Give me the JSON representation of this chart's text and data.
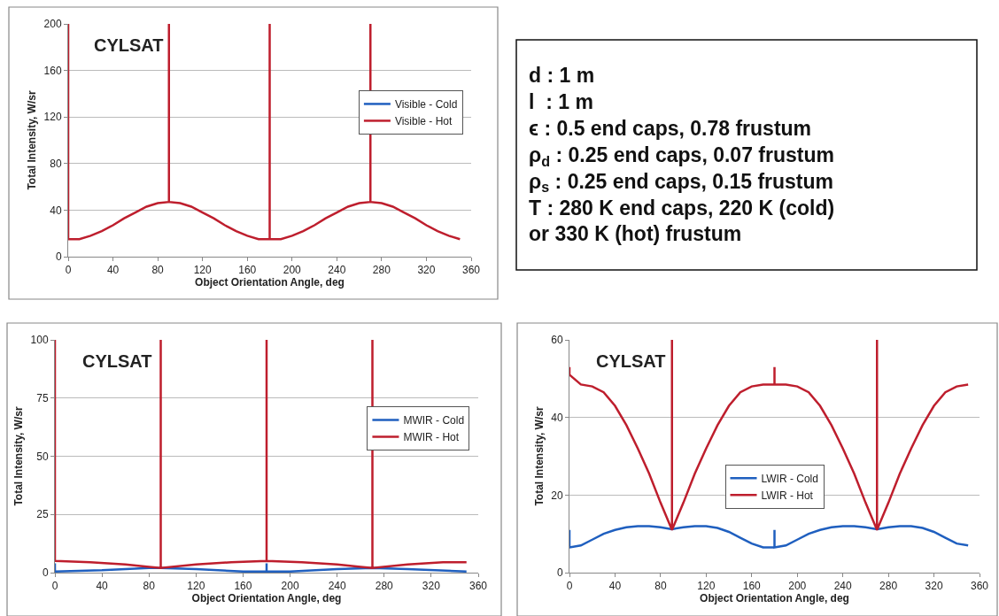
{
  "chart_data": [
    {
      "type": "line",
      "title": "CYLSAT",
      "xlabel": "Object Orientation Angle, deg",
      "ylabel": "Total Intensity, W/sr",
      "xlim": [
        0,
        360
      ],
      "xticks": [
        0,
        40,
        80,
        120,
        160,
        200,
        240,
        280,
        320,
        360
      ],
      "ylim": [
        0,
        200
      ],
      "yticks": [
        0,
        40,
        80,
        120,
        160,
        200
      ],
      "grid": "y",
      "legend": "right",
      "series": [
        {
          "name": "Visible - Cold",
          "color": "#1f5fbf",
          "values": [
            null
          ]
        },
        {
          "name": "Visible - Hot",
          "color": "#be1e2d",
          "x": [
            0,
            0,
            10,
            20,
            30,
            40,
            50,
            60,
            70,
            80,
            90,
            90,
            90,
            100,
            110,
            120,
            130,
            140,
            150,
            160,
            170,
            180,
            180,
            180,
            190,
            200,
            210,
            220,
            230,
            240,
            250,
            260,
            270,
            270,
            270,
            280,
            290,
            300,
            310,
            320,
            330,
            340,
            350
          ],
          "values": [
            200,
            15,
            15,
            18,
            22,
            27,
            33,
            38,
            43,
            46,
            47,
            200,
            47,
            46,
            43,
            38,
            33,
            27,
            22,
            18,
            15,
            15,
            200,
            15,
            15,
            18,
            22,
            27,
            33,
            38,
            43,
            46,
            47,
            200,
            47,
            46,
            43,
            38,
            33,
            27,
            22,
            18,
            15
          ]
        }
      ]
    },
    {
      "type": "other",
      "annotations": [
        "d : 1 m",
        "l  : 1 m",
        "ϵ : 0.5 end caps, 0.78 frustum",
        "ρ$_{d}$ : 0.25 end caps, 0.07 frustum",
        "ρ$_{s}$ : 0.25 end caps, 0.15 frustum",
        "T : 280 K end caps, 220 K (cold)",
        "or 330 K (hot) frustum"
      ]
    },
    {
      "type": "line",
      "title": "CYLSAT",
      "xlabel": "Object Orientation Angle, deg",
      "ylabel": "Total Intensity, W/sr",
      "xlim": [
        0,
        360
      ],
      "xticks": [
        0,
        40,
        80,
        120,
        160,
        200,
        240,
        280,
        320,
        360
      ],
      "ylim": [
        0,
        100
      ],
      "yticks": [
        0,
        25,
        50,
        75,
        100
      ],
      "grid": "y",
      "legend": "right",
      "series": [
        {
          "name": "MWIR - Cold",
          "color": "#1f5fbf",
          "x": [
            0,
            0,
            40,
            80,
            90,
            120,
            160,
            180,
            180,
            180,
            200,
            240,
            270,
            300,
            350
          ],
          "values": [
            4,
            0.5,
            1,
            2,
            2,
            1.5,
            0.5,
            0.5,
            4,
            0.5,
            0.5,
            1.5,
            2,
            1.5,
            0.5
          ]
        },
        {
          "name": "MWIR - Hot",
          "color": "#be1e2d",
          "x": [
            0,
            0,
            30,
            60,
            80,
            90,
            90,
            90,
            120,
            150,
            180,
            180,
            180,
            210,
            240,
            260,
            270,
            270,
            270,
            300,
            330,
            350
          ],
          "values": [
            100,
            5,
            4.5,
            3.5,
            2.5,
            2,
            100,
            2,
            3.5,
            4.5,
            5,
            100,
            5,
            4.5,
            3.5,
            2.5,
            2,
            100,
            2,
            3.5,
            4.5,
            4.5
          ]
        }
      ]
    },
    {
      "type": "line",
      "title": "CYLSAT",
      "xlabel": "Object Orientation Angle, deg",
      "ylabel": "Total Intensity, W/sr",
      "xlim": [
        0,
        360
      ],
      "xticks": [
        0,
        40,
        80,
        120,
        160,
        200,
        240,
        280,
        320,
        360
      ],
      "ylim": [
        0,
        60
      ],
      "yticks": [
        0,
        20,
        40,
        60
      ],
      "grid": "y",
      "legend": "center",
      "series": [
        {
          "name": "LWIR - Cold",
          "color": "#1f5fbf",
          "x": [
            0,
            0,
            10,
            20,
            30,
            40,
            50,
            60,
            70,
            80,
            90,
            100,
            110,
            120,
            130,
            140,
            150,
            160,
            170,
            180,
            180,
            180,
            190,
            200,
            210,
            220,
            230,
            240,
            250,
            260,
            270,
            280,
            290,
            300,
            310,
            320,
            330,
            340,
            350
          ],
          "values": [
            11,
            6.5,
            7,
            8.5,
            10,
            11,
            11.7,
            12,
            12,
            11.7,
            11.2,
            11.7,
            12,
            12,
            11.5,
            10.5,
            9,
            7.5,
            6.5,
            6.5,
            11,
            6.5,
            7,
            8.5,
            10,
            11,
            11.7,
            12,
            12,
            11.7,
            11.2,
            11.7,
            12,
            12,
            11.5,
            10.5,
            9,
            7.5,
            7
          ]
        },
        {
          "name": "LWIR - Hot",
          "color": "#be1e2d",
          "x": [
            0,
            0,
            10,
            20,
            30,
            40,
            50,
            60,
            70,
            80,
            90,
            90,
            90,
            100,
            110,
            120,
            130,
            140,
            150,
            160,
            170,
            180,
            180,
            180,
            190,
            200,
            210,
            220,
            230,
            240,
            250,
            260,
            270,
            270,
            270,
            280,
            290,
            300,
            310,
            320,
            330,
            340,
            350
          ],
          "values": [
            53,
            51,
            48.5,
            48,
            46.5,
            43,
            38,
            32,
            25.5,
            18,
            11,
            60,
            11,
            18,
            25.5,
            32,
            38,
            43,
            46.5,
            48,
            48.5,
            48.5,
            53,
            48.5,
            48.5,
            48,
            46.5,
            43,
            38,
            32,
            25.5,
            18,
            11,
            60,
            11,
            18,
            25.5,
            32,
            38,
            43,
            46.5,
            48,
            48.5
          ]
        }
      ]
    }
  ]
}
